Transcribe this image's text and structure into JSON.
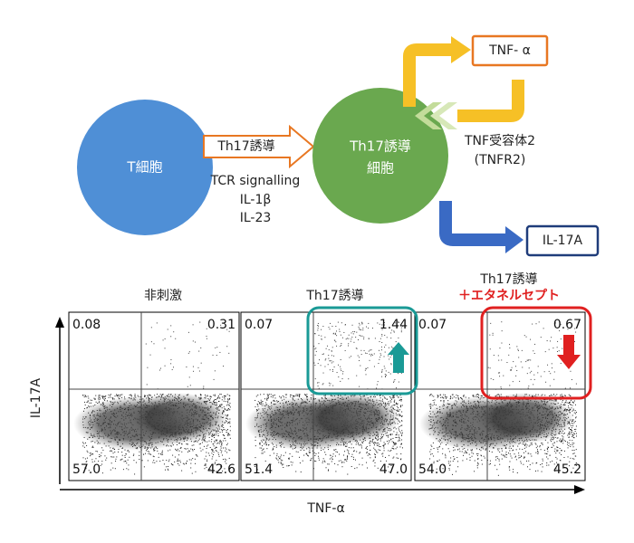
{
  "diagram": {
    "t_cell": "T細胞",
    "induction_arrow": "Th17誘導",
    "induction_factors": [
      "TCR signalling",
      "IL-1β",
      "IL-23"
    ],
    "th17_cell": [
      "Th17誘導",
      "細胞"
    ],
    "tnf_alpha": "TNF- α",
    "receptor": [
      "TNF受容体2",
      "(TNFR2)"
    ],
    "il17a": "IL-17A"
  },
  "plots": {
    "y_axis_label": "IL-17A",
    "x_axis_label": "TNF-α",
    "panels": [
      {
        "title": [
          "非刺激"
        ],
        "quadrants": {
          "upper_left": "0.08",
          "upper_right": "0.31",
          "lower_left": "57.0",
          "lower_right": "42.6"
        }
      },
      {
        "title": [
          "Th17誘導"
        ],
        "quadrants": {
          "upper_left": "0.07",
          "upper_right": "1.44",
          "lower_left": "51.4",
          "lower_right": "47.0"
        }
      },
      {
        "title": [
          "Th17誘導",
          "＋エタネルセプト"
        ],
        "quadrants": {
          "upper_left": "0.07",
          "upper_right": "0.67",
          "lower_left": "54.0",
          "lower_right": "45.2"
        }
      }
    ]
  }
}
